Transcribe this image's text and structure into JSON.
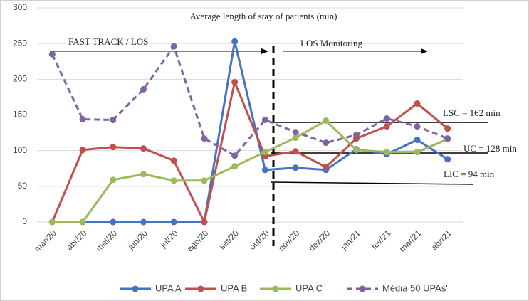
{
  "chart_data": {
    "type": "line",
    "title": "Average length of stay of patients (min)",
    "categories": [
      "mar/20",
      "abr/20",
      "mai/20",
      "jun/20",
      "jul/20",
      "ago/20",
      "set/20",
      "out/20",
      "nov/20",
      "dez/20",
      "jan/21",
      "fev/21",
      "mar/21",
      "abr/21"
    ],
    "series": [
      {
        "name": "UPA A",
        "color": "#4472c4",
        "values": [
          0,
          0,
          0,
          0,
          0,
          0,
          253,
          73,
          76,
          73,
          102,
          95,
          115,
          88
        ]
      },
      {
        "name": "UPA B",
        "color": "#c0504d",
        "values": [
          0,
          101,
          105,
          103,
          86,
          0,
          196,
          92,
          99,
          77,
          117,
          134,
          166,
          131
        ]
      },
      {
        "name": "UPA C",
        "color": "#9bbb59",
        "values": [
          0,
          0,
          59,
          67,
          58,
          58,
          78,
          98,
          118,
          142,
          101,
          98,
          98,
          116
        ]
      },
      {
        "name": "Média 50 UPAs'",
        "color": "#8064a2",
        "dashed": true,
        "values": [
          235,
          144,
          143,
          186,
          246,
          117,
          93,
          143,
          126,
          111,
          122,
          145,
          134,
          117
        ]
      }
    ],
    "ylim": [
      0,
      300
    ],
    "yticks": [
      0,
      50,
      100,
      150,
      200,
      250,
      300
    ],
    "grid": true,
    "annotations": [
      "FAST TRACK / LOS",
      "LOS Monitoring",
      "LSC = 162 min",
      "UC = 128 min",
      "LIC = 94 min"
    ]
  }
}
